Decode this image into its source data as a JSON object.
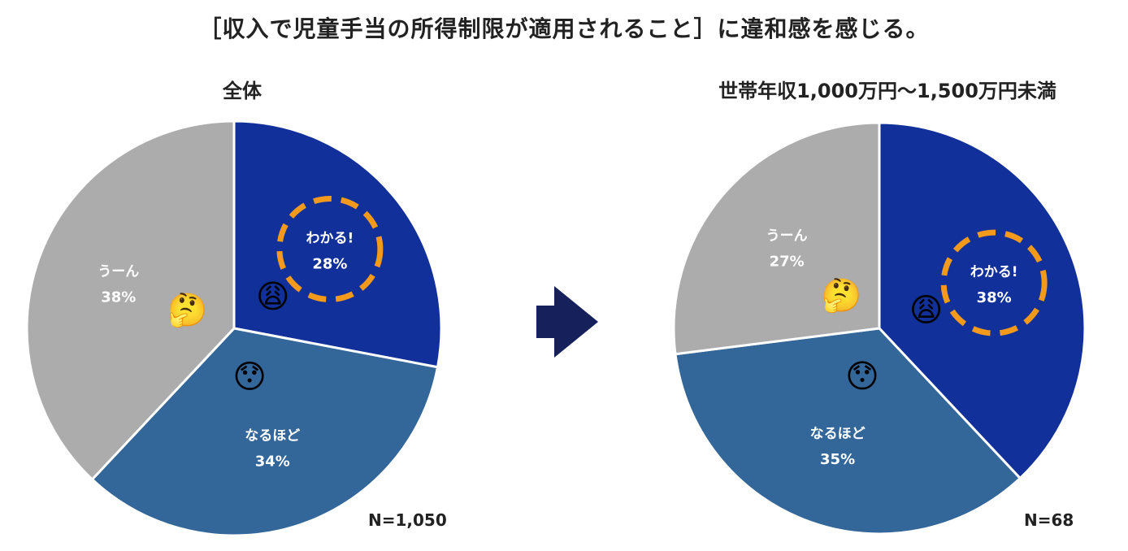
{
  "title": "［収入で児童手当の所得制限が適用されること］に違和感を感じる。",
  "colors": {
    "wakaru": "#12309a",
    "naruhodo": "#336699",
    "uun": "#acacac",
    "highlight": "#f39a1d",
    "arrow": "#16205a"
  },
  "chart_data": [
    {
      "type": "pie",
      "title": "全体",
      "n_label": "N=1,050",
      "slices": [
        {
          "label": "わかる!",
          "value": 28,
          "pct_label": "28%",
          "color_key": "wakaru",
          "highlight": true,
          "emoji": "😩"
        },
        {
          "label": "なるほど",
          "value": 34,
          "pct_label": "34%",
          "color_key": "naruhodo",
          "highlight": false,
          "emoji": "😯"
        },
        {
          "label": "うーん",
          "value": 38,
          "pct_label": "38%",
          "color_key": "uun",
          "highlight": false,
          "emoji": "🤔"
        }
      ]
    },
    {
      "type": "pie",
      "title": "世帯年収1,000万円〜1,500万円未満",
      "n_label": "N=68",
      "slices": [
        {
          "label": "わかる!",
          "value": 38,
          "pct_label": "38%",
          "color_key": "wakaru",
          "highlight": true,
          "emoji": "😩"
        },
        {
          "label": "なるほど",
          "value": 35,
          "pct_label": "35%",
          "color_key": "naruhodo",
          "highlight": false,
          "emoji": "😯"
        },
        {
          "label": "うーん",
          "value": 27,
          "pct_label": "27%",
          "color_key": "uun",
          "highlight": false,
          "emoji": "🤔"
        }
      ]
    }
  ],
  "arrow_icon": "right-arrow-icon"
}
